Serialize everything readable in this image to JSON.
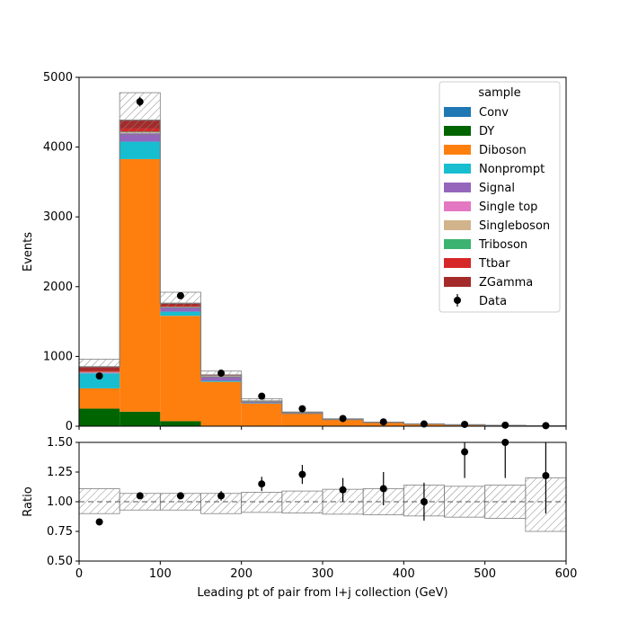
{
  "chart_data": [
    {
      "type": "bar",
      "stacked": true,
      "ylabel": "Events",
      "ylim": [
        0,
        5000
      ],
      "xlim": [
        0,
        600
      ],
      "bin_edges": [
        0,
        50,
        100,
        150,
        200,
        250,
        300,
        350,
        400,
        450,
        500,
        550,
        600
      ],
      "yticks": [
        0,
        1000,
        2000,
        3000,
        4000,
        5000
      ],
      "colors": {
        "Conv": "#1f77b4",
        "DY": "#006400",
        "Diboson": "#ff7f0e",
        "Nonprompt": "#17becf",
        "Signal": "#9467bd",
        "Single top": "#e377c2",
        "Singleboson": "#d2b48c",
        "Triboson": "#3cb371",
        "Ttbar": "#d62728",
        "ZGamma": "#a52a2a"
      },
      "series": [
        {
          "name": "Conv",
          "values": [
            2,
            3,
            2,
            1,
            1,
            0,
            0,
            0,
            0,
            0,
            0,
            0
          ]
        },
        {
          "name": "DY",
          "values": [
            250,
            205,
            70,
            5,
            3,
            1,
            1,
            0,
            0,
            0,
            0,
            0
          ]
        },
        {
          "name": "Diboson",
          "values": [
            290,
            3620,
            1510,
            630,
            320,
            175,
            90,
            50,
            28,
            18,
            10,
            6
          ]
        },
        {
          "name": "Nonprompt",
          "values": [
            215,
            250,
            60,
            15,
            5,
            2,
            1,
            1,
            0,
            0,
            0,
            0
          ]
        },
        {
          "name": "Signal",
          "values": [
            10,
            120,
            55,
            60,
            20,
            8,
            4,
            2,
            2,
            1,
            1,
            1
          ]
        },
        {
          "name": "Single top",
          "values": [
            3,
            5,
            3,
            2,
            1,
            1,
            0,
            0,
            0,
            0,
            0,
            0
          ]
        },
        {
          "name": "Singleboson",
          "values": [
            5,
            8,
            4,
            2,
            1,
            1,
            0,
            0,
            0,
            0,
            0,
            0
          ]
        },
        {
          "name": "Triboson",
          "values": [
            3,
            10,
            8,
            5,
            3,
            2,
            1,
            1,
            1,
            0,
            0,
            0
          ]
        },
        {
          "name": "Ttbar",
          "values": [
            15,
            45,
            15,
            5,
            3,
            2,
            1,
            1,
            0,
            0,
            0,
            0
          ]
        },
        {
          "name": "ZGamma",
          "values": [
            60,
            120,
            35,
            10,
            4,
            2,
            1,
            0,
            0,
            0,
            0,
            0
          ]
        }
      ],
      "mc_uncertainty_band": [
        [
          850,
          960
        ],
        [
          4180,
          4780
        ],
        [
          1700,
          1920
        ],
        [
          700,
          790
        ],
        [
          345,
          395
        ],
        [
          180,
          205
        ],
        [
          92,
          107
        ],
        [
          51,
          60
        ],
        [
          30,
          35
        ],
        [
          19,
          23
        ],
        [
          11,
          13
        ],
        [
          6,
          8
        ]
      ],
      "data": {
        "name": "Data",
        "x": [
          25,
          75,
          125,
          175,
          225,
          275,
          325,
          375,
          425,
          475,
          525,
          575
        ],
        "y": [
          720,
          4650,
          1870,
          760,
          430,
          250,
          110,
          62,
          32,
          26,
          15,
          8
        ],
        "yerr": [
          27,
          68,
          43,
          28,
          21,
          16,
          10,
          8,
          6,
          5,
          4,
          3
        ]
      },
      "legend": {
        "title": "sample",
        "placement": "top-right"
      }
    },
    {
      "type": "scatter",
      "xlabel": "Leading pt of pair from l+j collection (GeV)",
      "ylabel": "Ratio",
      "xlim": [
        0,
        600
      ],
      "ylim": [
        0.5,
        1.5
      ],
      "xticks": [
        0,
        100,
        200,
        300,
        400,
        500,
        600
      ],
      "yticks": [
        "0.50",
        "0.75",
        "1.00",
        "1.25",
        "1.50"
      ],
      "reference_line": 1.0,
      "band": [
        [
          0.9,
          1.11
        ],
        [
          0.93,
          1.07
        ],
        [
          0.93,
          1.07
        ],
        [
          0.9,
          1.07
        ],
        [
          0.91,
          1.08
        ],
        [
          0.905,
          1.09
        ],
        [
          0.895,
          1.105
        ],
        [
          0.89,
          1.11
        ],
        [
          0.88,
          1.14
        ],
        [
          0.87,
          1.13
        ],
        [
          0.86,
          1.14
        ],
        [
          0.75,
          1.2
        ]
      ],
      "points": {
        "x": [
          25,
          75,
          125,
          175,
          225,
          275,
          325,
          375,
          425,
          475,
          525,
          575
        ],
        "y": [
          0.83,
          1.05,
          1.05,
          1.05,
          1.15,
          1.23,
          1.1,
          1.11,
          1.0,
          1.42,
          1.5,
          1.22
        ],
        "yerr": [
          0.02,
          0.02,
          0.02,
          0.04,
          0.06,
          0.08,
          0.1,
          0.14,
          0.16,
          0.22,
          0.3,
          0.32
        ]
      }
    }
  ]
}
